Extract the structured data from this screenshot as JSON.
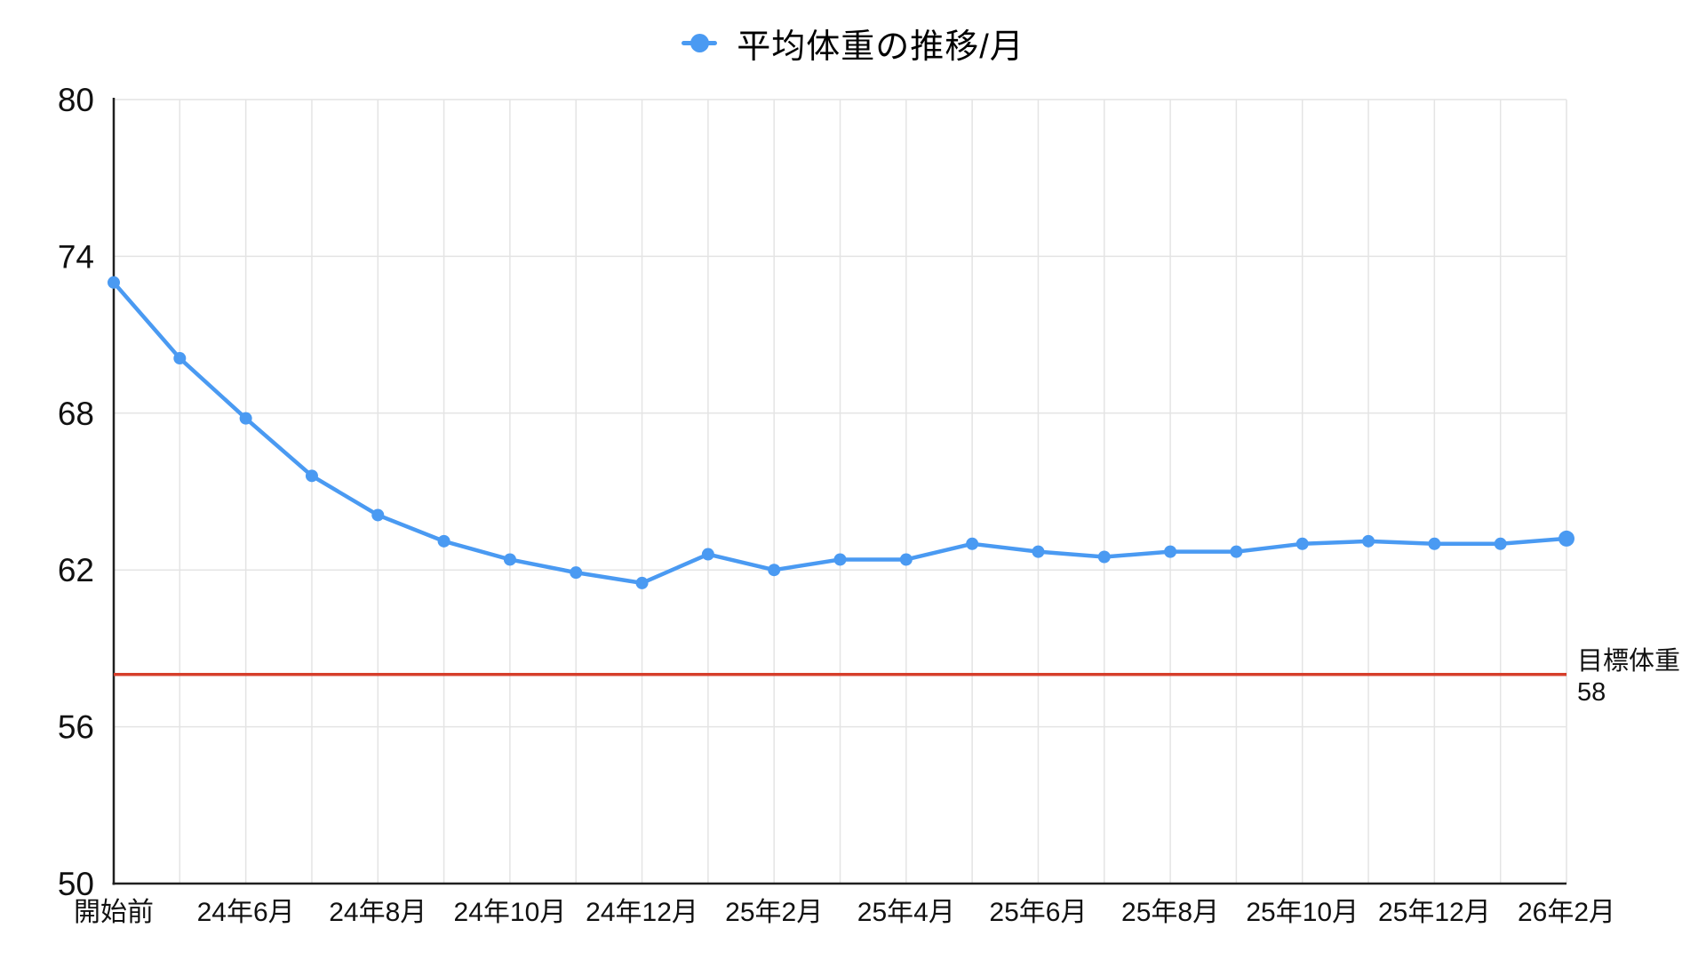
{
  "chart_data": {
    "type": "line",
    "title": "平均体重の推移/月",
    "legend_position": "top",
    "grid": true,
    "background": "#ffffff",
    "x_tick_labels": [
      "開始前",
      "24年6月",
      "24年8月",
      "24年10月",
      "24年12月",
      "25年2月",
      "25年4月",
      "25年6月",
      "25年8月",
      "25年10月",
      "25年12月",
      "26年2月"
    ],
    "x_tick_indices": [
      0,
      2,
      4,
      6,
      8,
      10,
      12,
      14,
      16,
      18,
      20,
      22
    ],
    "series": [
      {
        "name": "平均体重の推移/月",
        "color": "#4a9af2",
        "values": [
          73.0,
          70.1,
          67.8,
          65.6,
          64.1,
          63.1,
          62.4,
          61.9,
          61.5,
          62.6,
          62.0,
          62.4,
          62.4,
          63.0,
          62.7,
          62.5,
          62.7,
          62.7,
          63.0,
          63.1,
          63.0,
          63.0,
          63.2
        ]
      }
    ],
    "ylim": [
      50,
      80
    ],
    "yticks": [
      80,
      74,
      68,
      62,
      56,
      50
    ],
    "target_line": {
      "value": 58,
      "color": "#d63e2b",
      "label_lines": [
        "目標体重",
        "58"
      ]
    },
    "colors": {
      "grid": "#e4e4e4",
      "axis": "#1f1f1f",
      "text": "#111111",
      "accent": "#4a9af2"
    }
  }
}
